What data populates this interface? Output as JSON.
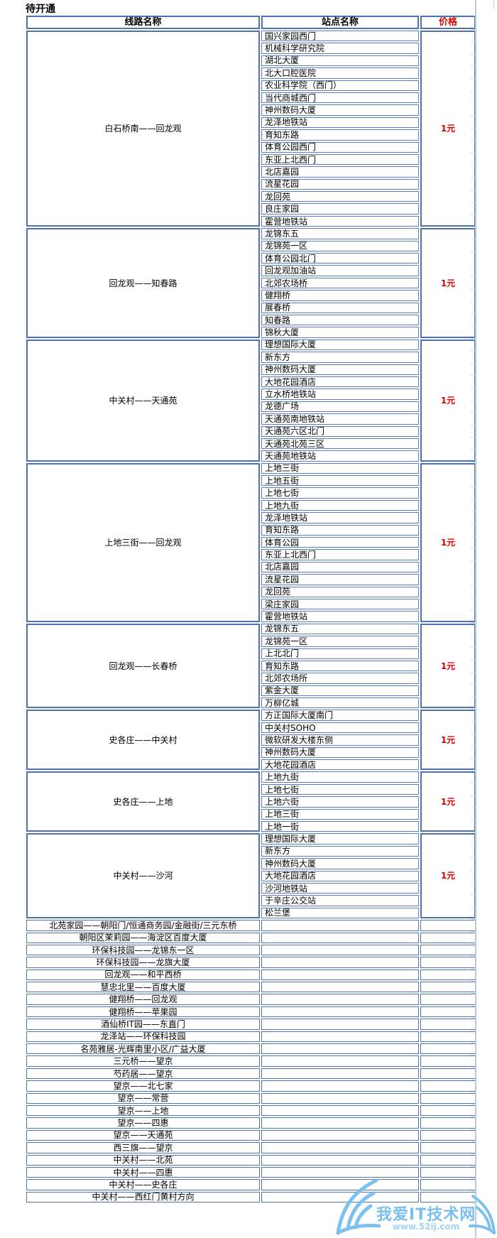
{
  "page": {
    "title": "待开通"
  },
  "table": {
    "headers": {
      "route": "线路名称",
      "stations": "站点名称",
      "price": "价格"
    },
    "sections": [
      {
        "route": "白石桥南——回龙观",
        "price": "1元",
        "stations": [
          "国兴家园西门",
          "机械科学研究院",
          "湖北大厦",
          "北大口腔医院",
          "农业科学院（西门）",
          "当代商城西门",
          "神州数码大厦",
          "龙泽地铁站",
          "育知东路",
          "体育公园西门",
          "东亚上北西门",
          "北店嘉园",
          "流星花园",
          "龙回苑",
          "良庄家园",
          "霍营地铁站"
        ]
      },
      {
        "route": "回龙观——知春路",
        "price": "1元",
        "stations": [
          "龙锦东五",
          "龙锦苑一区",
          "体育公园北门",
          "回龙观加油站",
          "北郊农场桥",
          "健翔桥",
          "展春桥",
          "知春路",
          "锦秋大厦"
        ]
      },
      {
        "route": "中关村——天通苑",
        "price": "1元",
        "stations": [
          "理想国际大厦",
          "新东方",
          "神州数码大厦",
          "大地花园酒店",
          "立水桥地铁站",
          "龙德广场",
          "天通苑南地铁站",
          "天通苑六区北门",
          "天通苑北苑三区",
          "天通苑地铁站"
        ]
      },
      {
        "route": "上地三街——回龙观",
        "price": "1元",
        "stations": [
          "上地三街",
          "上地五街",
          "上地七街",
          "上地九街",
          "龙泽地铁站",
          "育知东路",
          "体育公园",
          "东亚上北西门",
          "北店嘉园",
          "流星花园",
          "龙回苑",
          "梁庄家园",
          "霍营地铁站"
        ]
      },
      {
        "route": "回龙观——长春桥",
        "price": "1元",
        "stations": [
          "龙锦东五",
          "龙锦苑一区",
          "上北北门",
          "育知东路",
          "北郊农场所",
          "紫金大厦",
          "万柳亿城"
        ]
      },
      {
        "route": "史各庄——中关村",
        "price": "1元",
        "stations": [
          "方正国际大厦南门",
          "中关村SOHO",
          "微软研发大楼东侧",
          "神州数码大厦",
          "大地花园酒店"
        ]
      },
      {
        "route": "史各庄——上地",
        "price": "1元",
        "stations": [
          "上地九街",
          "上地七街",
          "上地六街",
          "上地三街",
          "上地一街"
        ]
      },
      {
        "route": "中关村——沙河",
        "price": "1元",
        "stations": [
          "理想国际大厦",
          "新东方",
          "神州数码大厦",
          "大地花园酒店",
          "沙河地铁站",
          "于辛庄公交站",
          "松兰堡"
        ]
      }
    ],
    "simple_rows": [
      "北苑家园——朝阳门/恒通商务园/金融街/三元东桥",
      "朝阳区茉莉园——海淀区百度大厦",
      "环保科技园——龙锦东一区",
      "环保科技园——龙旗大厦",
      "回龙观——和平西桥",
      "慧忠北里——百度大厦",
      "健翔桥——回龙观",
      "健翔桥——苹果园",
      "酒仙桥IT园——东直门",
      "龙泽站——环保科技园",
      "名苑雅居-光辉南里小区/广益大厦",
      "三元桥——望京",
      "芍药居——望京",
      "望京——北七家",
      "望京——常营",
      "望京——上地",
      "望京——四惠",
      "望京——天通苑",
      "西三旗——望京",
      "中关村——北苑",
      "中关村——四惠",
      "中关村——史各庄",
      "中关村——西红门黄村方向"
    ]
  },
  "watermark": {
    "site_name": "我爱IT技术网",
    "site_url": "www.52ij.com"
  },
  "colors": {
    "border": "#4e72ad",
    "border_light": "#5b7cba",
    "price_red": "#e00000",
    "watermark_blue": "#79c0ed",
    "watermark_light_blue": "#a5d3f3",
    "gutter": "#bccadf",
    "gutter_tick": "#c6d4e8"
  }
}
